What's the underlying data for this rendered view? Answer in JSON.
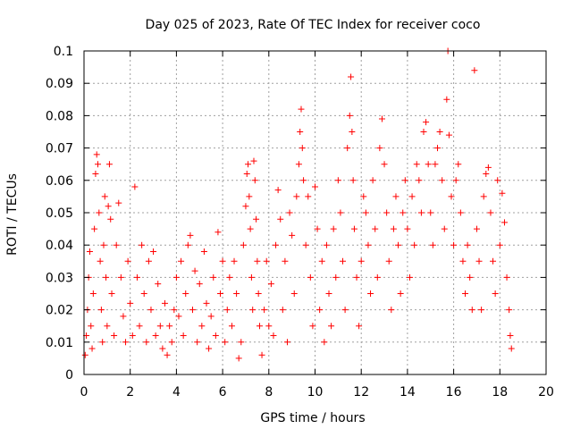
{
  "chart_data": {
    "type": "scatter",
    "title": "Day 025 of 2023, Rate Of TEC Index for receiver coco",
    "xlabel": "GPS time / hours",
    "ylabel": "ROTI / TECUs",
    "xlim": [
      0,
      20
    ],
    "ylim": [
      0,
      0.1
    ],
    "x_ticks": [
      "0",
      "2",
      "4",
      "6",
      "8",
      "10",
      "12",
      "14",
      "16",
      "18",
      "20"
    ],
    "y_ticks": [
      "0",
      "0.01",
      "0.02",
      "0.03",
      "0.04",
      "0.05",
      "0.06",
      "0.07",
      "0.08",
      "0.09",
      "0.1"
    ],
    "grid": true,
    "marker": "+",
    "color": "#ff0000",
    "points": [
      [
        0.05,
        0.006
      ],
      [
        0.1,
        0.012
      ],
      [
        0.15,
        0.02
      ],
      [
        0.2,
        0.03
      ],
      [
        0.25,
        0.038
      ],
      [
        0.3,
        0.015
      ],
      [
        0.35,
        0.008
      ],
      [
        0.4,
        0.025
      ],
      [
        0.45,
        0.045
      ],
      [
        0.5,
        0.062
      ],
      [
        0.55,
        0.068
      ],
      [
        0.6,
        0.065
      ],
      [
        0.65,
        0.05
      ],
      [
        0.7,
        0.035
      ],
      [
        0.75,
        0.02
      ],
      [
        0.8,
        0.01
      ],
      [
        0.85,
        0.04
      ],
      [
        0.9,
        0.055
      ],
      [
        0.95,
        0.03
      ],
      [
        1.0,
        0.015
      ],
      [
        1.05,
        0.052
      ],
      [
        1.1,
        0.065
      ],
      [
        1.15,
        0.048
      ],
      [
        1.2,
        0.025
      ],
      [
        1.3,
        0.012
      ],
      [
        1.4,
        0.04
      ],
      [
        1.5,
        0.053
      ],
      [
        1.6,
        0.03
      ],
      [
        1.7,
        0.018
      ],
      [
        1.8,
        0.01
      ],
      [
        1.9,
        0.035
      ],
      [
        2.0,
        0.022
      ],
      [
        2.1,
        0.012
      ],
      [
        2.2,
        0.058
      ],
      [
        2.3,
        0.03
      ],
      [
        2.4,
        0.015
      ],
      [
        2.5,
        0.04
      ],
      [
        2.6,
        0.025
      ],
      [
        2.7,
        0.01
      ],
      [
        2.8,
        0.035
      ],
      [
        2.9,
        0.02
      ],
      [
        3.0,
        0.038
      ],
      [
        3.1,
        0.012
      ],
      [
        3.2,
        0.028
      ],
      [
        3.3,
        0.015
      ],
      [
        3.4,
        0.008
      ],
      [
        3.5,
        0.022
      ],
      [
        3.6,
        0.006
      ],
      [
        3.7,
        0.015
      ],
      [
        3.8,
        0.01
      ],
      [
        3.9,
        0.02
      ],
      [
        4.0,
        0.03
      ],
      [
        4.1,
        0.018
      ],
      [
        4.2,
        0.035
      ],
      [
        4.3,
        0.012
      ],
      [
        4.4,
        0.025
      ],
      [
        4.5,
        0.04
      ],
      [
        4.6,
        0.043
      ],
      [
        4.7,
        0.02
      ],
      [
        4.8,
        0.032
      ],
      [
        4.9,
        0.01
      ],
      [
        5.0,
        0.028
      ],
      [
        5.1,
        0.015
      ],
      [
        5.2,
        0.038
      ],
      [
        5.3,
        0.022
      ],
      [
        5.4,
        0.008
      ],
      [
        5.5,
        0.018
      ],
      [
        5.6,
        0.03
      ],
      [
        5.7,
        0.012
      ],
      [
        5.8,
        0.044
      ],
      [
        5.9,
        0.025
      ],
      [
        6.0,
        0.035
      ],
      [
        6.1,
        0.01
      ],
      [
        6.2,
        0.02
      ],
      [
        6.3,
        0.03
      ],
      [
        6.4,
        0.015
      ],
      [
        6.5,
        0.035
      ],
      [
        6.6,
        0.025
      ],
      [
        6.7,
        0.005
      ],
      [
        6.8,
        0.01
      ],
      [
        6.9,
        0.04
      ],
      [
        7.0,
        0.052
      ],
      [
        7.05,
        0.062
      ],
      [
        7.1,
        0.065
      ],
      [
        7.15,
        0.055
      ],
      [
        7.2,
        0.045
      ],
      [
        7.25,
        0.03
      ],
      [
        7.3,
        0.02
      ],
      [
        7.35,
        0.066
      ],
      [
        7.4,
        0.06
      ],
      [
        7.45,
        0.048
      ],
      [
        7.5,
        0.035
      ],
      [
        7.55,
        0.025
      ],
      [
        7.6,
        0.015
      ],
      [
        7.7,
        0.006
      ],
      [
        7.8,
        0.02
      ],
      [
        7.9,
        0.035
      ],
      [
        8.0,
        0.015
      ],
      [
        8.1,
        0.028
      ],
      [
        8.2,
        0.012
      ],
      [
        8.3,
        0.04
      ],
      [
        8.4,
        0.057
      ],
      [
        8.5,
        0.048
      ],
      [
        8.6,
        0.02
      ],
      [
        8.7,
        0.035
      ],
      [
        8.8,
        0.01
      ],
      [
        8.9,
        0.05
      ],
      [
        9.0,
        0.043
      ],
      [
        9.1,
        0.025
      ],
      [
        9.2,
        0.055
      ],
      [
        9.3,
        0.065
      ],
      [
        9.35,
        0.075
      ],
      [
        9.4,
        0.082
      ],
      [
        9.45,
        0.07
      ],
      [
        9.5,
        0.06
      ],
      [
        9.6,
        0.04
      ],
      [
        9.7,
        0.055
      ],
      [
        9.8,
        0.03
      ],
      [
        9.9,
        0.015
      ],
      [
        10.0,
        0.058
      ],
      [
        10.1,
        0.045
      ],
      [
        10.2,
        0.02
      ],
      [
        10.3,
        0.035
      ],
      [
        10.4,
        0.01
      ],
      [
        10.5,
        0.04
      ],
      [
        10.6,
        0.025
      ],
      [
        10.7,
        0.015
      ],
      [
        10.8,
        0.045
      ],
      [
        10.9,
        0.03
      ],
      [
        11.0,
        0.06
      ],
      [
        11.1,
        0.05
      ],
      [
        11.2,
        0.035
      ],
      [
        11.3,
        0.02
      ],
      [
        11.4,
        0.07
      ],
      [
        11.5,
        0.08
      ],
      [
        11.55,
        0.092
      ],
      [
        11.6,
        0.075
      ],
      [
        11.65,
        0.06
      ],
      [
        11.7,
        0.045
      ],
      [
        11.8,
        0.03
      ],
      [
        11.9,
        0.015
      ],
      [
        12.0,
        0.035
      ],
      [
        12.1,
        0.055
      ],
      [
        12.2,
        0.05
      ],
      [
        12.3,
        0.04
      ],
      [
        12.4,
        0.025
      ],
      [
        12.5,
        0.06
      ],
      [
        12.6,
        0.045
      ],
      [
        12.7,
        0.03
      ],
      [
        12.8,
        0.07
      ],
      [
        12.9,
        0.079
      ],
      [
        13.0,
        0.065
      ],
      [
        13.1,
        0.05
      ],
      [
        13.2,
        0.035
      ],
      [
        13.3,
        0.02
      ],
      [
        13.4,
        0.045
      ],
      [
        13.5,
        0.055
      ],
      [
        13.6,
        0.04
      ],
      [
        13.7,
        0.025
      ],
      [
        13.8,
        0.05
      ],
      [
        13.9,
        0.06
      ],
      [
        14.0,
        0.045
      ],
      [
        14.1,
        0.03
      ],
      [
        14.2,
        0.055
      ],
      [
        14.3,
        0.04
      ],
      [
        14.4,
        0.065
      ],
      [
        14.5,
        0.06
      ],
      [
        14.6,
        0.05
      ],
      [
        14.7,
        0.075
      ],
      [
        14.8,
        0.078
      ],
      [
        14.9,
        0.065
      ],
      [
        15.0,
        0.05
      ],
      [
        15.1,
        0.04
      ],
      [
        15.2,
        0.065
      ],
      [
        15.3,
        0.07
      ],
      [
        15.4,
        0.075
      ],
      [
        15.5,
        0.06
      ],
      [
        15.6,
        0.045
      ],
      [
        15.7,
        0.085
      ],
      [
        15.75,
        0.1
      ],
      [
        15.8,
        0.074
      ],
      [
        15.9,
        0.055
      ],
      [
        16.0,
        0.04
      ],
      [
        16.1,
        0.06
      ],
      [
        16.2,
        0.065
      ],
      [
        16.3,
        0.05
      ],
      [
        16.4,
        0.035
      ],
      [
        16.5,
        0.025
      ],
      [
        16.6,
        0.04
      ],
      [
        16.7,
        0.03
      ],
      [
        16.8,
        0.02
      ],
      [
        16.9,
        0.094
      ],
      [
        17.0,
        0.045
      ],
      [
        17.1,
        0.035
      ],
      [
        17.2,
        0.02
      ],
      [
        17.3,
        0.055
      ],
      [
        17.4,
        0.062
      ],
      [
        17.5,
        0.064
      ],
      [
        17.6,
        0.05
      ],
      [
        17.7,
        0.035
      ],
      [
        17.8,
        0.025
      ],
      [
        17.9,
        0.06
      ],
      [
        18.0,
        0.04
      ],
      [
        18.1,
        0.056
      ],
      [
        18.2,
        0.047
      ],
      [
        18.3,
        0.03
      ],
      [
        18.4,
        0.02
      ],
      [
        18.45,
        0.012
      ],
      [
        18.5,
        0.008
      ]
    ]
  }
}
